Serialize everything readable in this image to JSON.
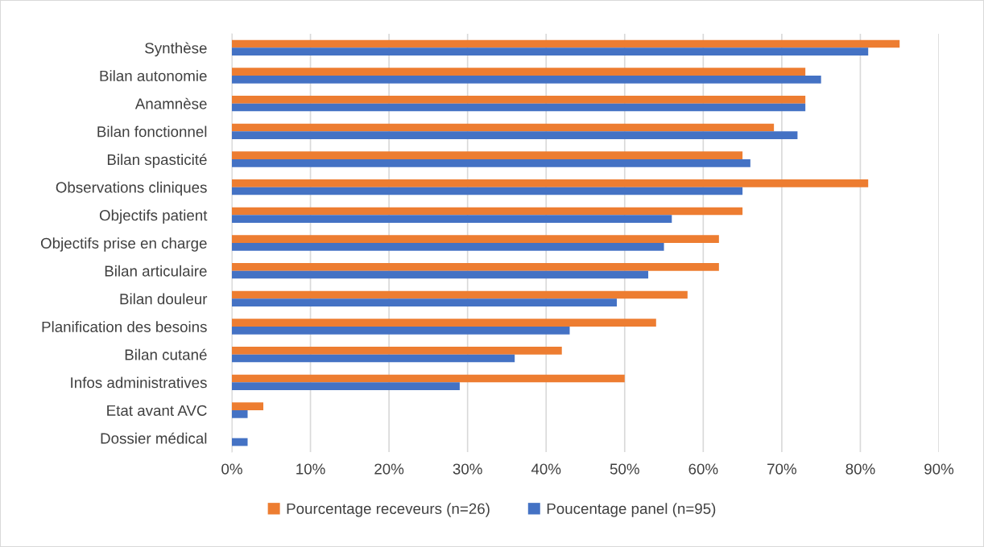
{
  "chart_data": {
    "type": "bar",
    "orientation": "horizontal",
    "categories": [
      "Synthèse",
      "Bilan autonomie",
      "Anamnèse",
      "Bilan fonctionnel",
      "Bilan spasticité",
      "Observations cliniques",
      "Objectifs patient",
      "Objectifs prise en charge",
      "Bilan articulaire",
      "Bilan douleur",
      "Planification des besoins",
      "Bilan cutané",
      "Infos administratives",
      "Etat avant AVC",
      "Dossier médical"
    ],
    "series": [
      {
        "name": "Pourcentage receveurs (n=26)",
        "color": "#ed7d31",
        "values": [
          85,
          73,
          73,
          69,
          65,
          81,
          65,
          62,
          62,
          58,
          54,
          42,
          50,
          4,
          0
        ]
      },
      {
        "name": "Poucentage panel (n=95)",
        "color": "#4472c4",
        "values": [
          81,
          75,
          73,
          72,
          66,
          65,
          56,
          55,
          53,
          49,
          43,
          36,
          29,
          2,
          2
        ]
      }
    ],
    "xlim": [
      0,
      90
    ],
    "xticks": [
      {
        "value": 0,
        "label": "0%"
      },
      {
        "value": 10,
        "label": "10%"
      },
      {
        "value": 20,
        "label": "20%"
      },
      {
        "value": 30,
        "label": "30%"
      },
      {
        "value": 40,
        "label": "40%"
      },
      {
        "value": 50,
        "label": "50%"
      },
      {
        "value": 60,
        "label": "60%"
      },
      {
        "value": 70,
        "label": "70%"
      },
      {
        "value": 80,
        "label": "80%"
      },
      {
        "value": 90,
        "label": "90%"
      }
    ],
    "grid": "x",
    "legend": "bottom"
  }
}
